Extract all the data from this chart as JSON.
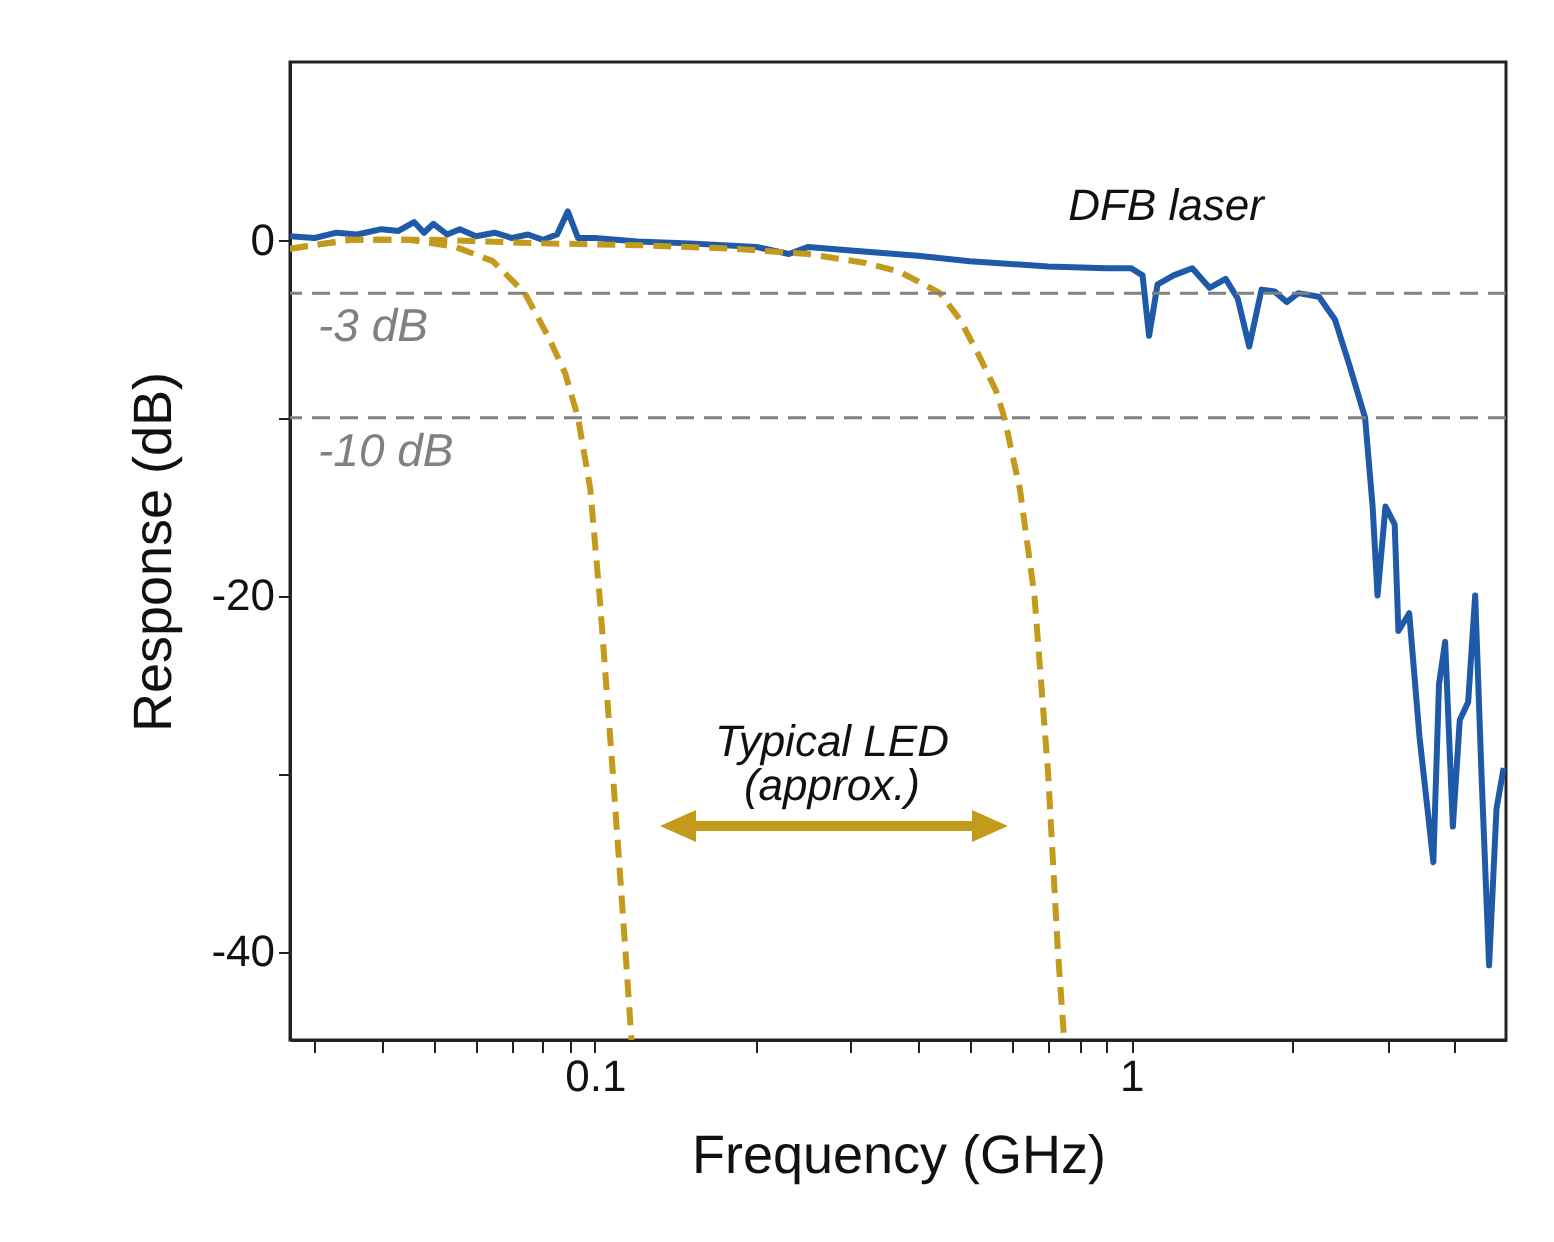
{
  "chart_data": {
    "type": "line",
    "xlabel": "Frequency (GHz)",
    "ylabel": "Response (dB)",
    "log": "x",
    "xlim": [
      0.027,
      5
    ],
    "ylim": [
      -45,
      10
    ],
    "xticks": [
      {
        "value": 0.03,
        "label": null
      },
      {
        "value": 0.04,
        "label": null
      },
      {
        "value": 0.05,
        "label": null
      },
      {
        "value": 0.06,
        "label": null
      },
      {
        "value": 0.07,
        "label": null
      },
      {
        "value": 0.08,
        "label": null
      },
      {
        "value": 0.09,
        "label": null
      },
      0.1,
      {
        "value": 0.2,
        "label": null
      },
      {
        "value": 0.3,
        "label": null
      },
      {
        "value": 0.4,
        "label": null
      },
      {
        "value": 0.5,
        "label": null
      },
      {
        "value": 0.6,
        "label": null
      },
      {
        "value": 0.7,
        "label": null
      },
      {
        "value": 0.8,
        "label": null
      },
      {
        "value": 0.9,
        "label": null
      },
      1,
      {
        "value": 2,
        "label": null
      },
      {
        "value": 3,
        "label": null
      },
      {
        "value": 4,
        "label": null
      }
    ],
    "yticks": [
      -40,
      {
        "value": -30,
        "label": null
      },
      -20,
      {
        "value": -10,
        "label": null
      },
      0
    ],
    "grid": false,
    "marker": "none",
    "series": [
      {
        "name": "DFB laser",
        "color": "#1f5aa8",
        "line_style": "solid",
        "x": [
          0.027,
          0.03,
          0.033,
          0.036,
          0.04,
          0.043,
          0.046,
          0.048,
          0.05,
          0.053,
          0.056,
          0.06,
          0.065,
          0.07,
          0.075,
          0.08,
          0.085,
          0.089,
          0.093,
          0.1,
          0.12,
          0.15,
          0.2,
          0.23,
          0.25,
          0.3,
          0.4,
          0.5,
          0.7,
          0.9,
          1.0,
          1.05,
          1.08,
          1.12,
          1.2,
          1.3,
          1.4,
          1.5,
          1.58,
          1.66,
          1.75,
          1.85,
          1.95,
          2.05,
          2.24,
          2.4,
          2.55,
          2.73,
          2.82,
          2.88,
          2.98,
          3.1,
          3.15,
          3.3,
          3.45,
          3.66,
          3.75,
          3.85,
          3.98,
          4.1,
          4.25,
          4.38,
          4.5,
          4.65,
          4.8,
          4.95
        ],
        "values": [
          0.2,
          0.1,
          0.4,
          0.3,
          0.6,
          0.5,
          1.0,
          0.4,
          0.9,
          0.3,
          0.6,
          0.2,
          0.4,
          0.1,
          0.3,
          0.0,
          0.3,
          1.6,
          0.1,
          0.1,
          -0.1,
          -0.2,
          -0.4,
          -0.8,
          -0.4,
          -0.6,
          -0.9,
          -1.2,
          -1.5,
          -1.6,
          -1.6,
          -2,
          -5.4,
          -2.5,
          -2,
          -1.6,
          -2.7,
          -2.2,
          -3.3,
          -6,
          -2.8,
          -2.9,
          -3.5,
          -3,
          -3.2,
          -4.5,
          -7,
          -10,
          -15,
          -20,
          -15,
          -16,
          -22,
          -21,
          -28,
          -35,
          -25,
          -22.6,
          -33,
          -27,
          -26,
          -20,
          -30,
          -40.8,
          -32,
          -29.7
        ]
      },
      {
        "color": "#c49a1c",
        "line_style": "dashed",
        "x": [
          0.027,
          0.035,
          0.045,
          0.055,
          0.0645,
          0.074,
          0.082,
          0.088,
          0.093,
          0.098,
          0.102,
          0.108,
          0.114,
          0.117
        ],
        "values": [
          -0.5,
          0,
          0,
          -0.4,
          -1.2,
          -3,
          -5.5,
          -7.5,
          -10,
          -14,
          -20,
          -30,
          -40,
          -45
        ]
      },
      {
        "color": "#c49a1c",
        "line_style": "dashed",
        "x": [
          0.027,
          0.035,
          0.05,
          0.08,
          0.12,
          0.18,
          0.25,
          0.32,
          0.37,
          0.41,
          0.44,
          0.48,
          0.52,
          0.56,
          0.58,
          0.62,
          0.66,
          0.7,
          0.73,
          0.75
        ],
        "values": [
          -0.5,
          0,
          0,
          -0.2,
          -0.3,
          -0.5,
          -0.8,
          -1.3,
          -1.8,
          -2.5,
          -3,
          -4.5,
          -6.5,
          -8.5,
          -10,
          -14,
          -20,
          -30,
          -40,
          -45
        ]
      }
    ],
    "ref_lines": [
      {
        "axis": "y",
        "value": -3,
        "label": "-3 dB",
        "color": "#808080",
        "line_style": "dashed"
      },
      {
        "axis": "y",
        "value": -10,
        "label": "-10 dB",
        "color": "#808080",
        "line_style": "dashed"
      }
    ],
    "annotations": [
      "Typical LED (approx.)"
    ]
  }
}
